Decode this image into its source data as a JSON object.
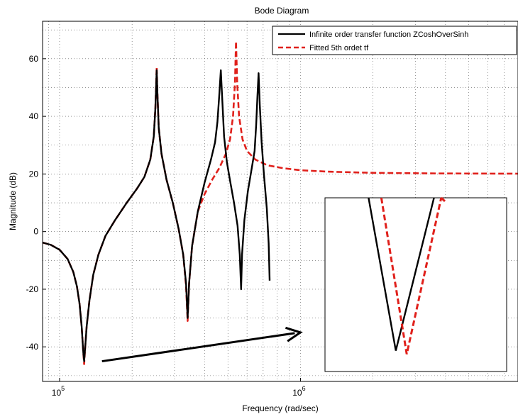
{
  "chart_data": {
    "type": "line",
    "title": "Bode Diagram",
    "xlabel": "Frequency  (rad/sec)",
    "ylabel": "Magnitude (dB)",
    "x_scale": "log",
    "xlim": [
      85000,
      8000000
    ],
    "ylim": [
      -52,
      73
    ],
    "x_ticks": [
      {
        "base": "10",
        "exp": "5",
        "value": 100000
      },
      {
        "base": "10",
        "exp": "6",
        "value": 1000000
      }
    ],
    "y_ticks": [
      -40,
      -20,
      0,
      20,
      40,
      60
    ],
    "grid": true,
    "legend_position": "top-right",
    "series": [
      {
        "name": "Infinite order transfer function ZCoshOverSinh",
        "color": "#000000",
        "style": "solid",
        "points": [
          [
            85000,
            -3.8
          ],
          [
            92000,
            -4.6
          ],
          [
            100000,
            -6.3
          ],
          [
            108000,
            -9.5
          ],
          [
            114000,
            -14
          ],
          [
            118000,
            -19
          ],
          [
            121000,
            -25
          ],
          [
            123500,
            -33
          ],
          [
            125500,
            -42
          ],
          [
            126500,
            -45
          ],
          [
            127500,
            -41
          ],
          [
            129500,
            -33
          ],
          [
            133000,
            -24
          ],
          [
            138000,
            -15
          ],
          [
            145000,
            -8
          ],
          [
            155000,
            -1.5
          ],
          [
            170000,
            4
          ],
          [
            190000,
            10
          ],
          [
            210000,
            15
          ],
          [
            225000,
            19
          ],
          [
            238000,
            25
          ],
          [
            246000,
            33
          ],
          [
            250000,
            43
          ],
          [
            253000,
            56
          ],
          [
            255000,
            47
          ],
          [
            258000,
            36
          ],
          [
            265000,
            27
          ],
          [
            278000,
            18
          ],
          [
            295000,
            10
          ],
          [
            312000,
            1
          ],
          [
            326000,
            -8
          ],
          [
            335000,
            -18
          ],
          [
            340000,
            -30
          ],
          [
            345000,
            -18
          ],
          [
            355000,
            -5
          ],
          [
            375000,
            7
          ],
          [
            400000,
            17
          ],
          [
            425000,
            25
          ],
          [
            442000,
            31
          ],
          [
            452000,
            38
          ],
          [
            460000,
            47
          ],
          [
            467000,
            56
          ],
          [
            474000,
            45
          ],
          [
            482000,
            33
          ],
          [
            495000,
            24
          ],
          [
            512000,
            17
          ],
          [
            530000,
            10
          ],
          [
            548000,
            2
          ],
          [
            560000,
            -8
          ],
          [
            567000,
            -20
          ],
          [
            572000,
            -8
          ],
          [
            585000,
            4
          ],
          [
            605000,
            14
          ],
          [
            625000,
            21
          ],
          [
            645000,
            28
          ],
          [
            655000,
            37
          ],
          [
            663000,
            47
          ],
          [
            670000,
            55
          ],
          [
            678000,
            44
          ],
          [
            690000,
            31
          ],
          [
            705000,
            20
          ],
          [
            725000,
            8
          ],
          [
            738000,
            -4
          ],
          [
            745000,
            -17
          ]
        ]
      },
      {
        "name": "Fitted 5th ordet tf",
        "color": "#e0201b",
        "style": "dashed",
        "points": [
          [
            85000,
            -3.8
          ],
          [
            92000,
            -4.6
          ],
          [
            100000,
            -6.3
          ],
          [
            108000,
            -9.5
          ],
          [
            114000,
            -14
          ],
          [
            118000,
            -19
          ],
          [
            121000,
            -25
          ],
          [
            123500,
            -33
          ],
          [
            125500,
            -42
          ],
          [
            126500,
            -46
          ],
          [
            127500,
            -41
          ],
          [
            129500,
            -33
          ],
          [
            133000,
            -24
          ],
          [
            138000,
            -15
          ],
          [
            145000,
            -8
          ],
          [
            155000,
            -1.5
          ],
          [
            170000,
            4
          ],
          [
            190000,
            10
          ],
          [
            210000,
            15
          ],
          [
            225000,
            19
          ],
          [
            238000,
            25
          ],
          [
            246000,
            33
          ],
          [
            250000,
            43
          ],
          [
            253000,
            57
          ],
          [
            255000,
            47
          ],
          [
            258000,
            36
          ],
          [
            265000,
            27
          ],
          [
            278000,
            18
          ],
          [
            295000,
            10
          ],
          [
            312000,
            1
          ],
          [
            326000,
            -8
          ],
          [
            335000,
            -19
          ],
          [
            340000,
            -31
          ],
          [
            345000,
            -18
          ],
          [
            355000,
            -5
          ],
          [
            375000,
            7
          ],
          [
            400000,
            13
          ],
          [
            430000,
            18
          ],
          [
            460000,
            22
          ],
          [
            490000,
            27
          ],
          [
            510000,
            32
          ],
          [
            525000,
            40
          ],
          [
            535000,
            52
          ],
          [
            540000,
            66
          ],
          [
            546000,
            52
          ],
          [
            556000,
            40
          ],
          [
            575000,
            32
          ],
          [
            600000,
            28
          ],
          [
            650000,
            25
          ],
          [
            730000,
            23
          ],
          [
            850000,
            22
          ],
          [
            1000000,
            21.3
          ],
          [
            1300000,
            20.8
          ],
          [
            2000000,
            20.4
          ],
          [
            3500000,
            20.2
          ],
          [
            8000000,
            20.1
          ]
        ]
      }
    ],
    "annotation": {
      "type": "arrow",
      "from": [
        150000,
        -45
      ],
      "to": [
        1000000,
        -35
      ]
    },
    "inset": {
      "description_hidden": true,
      "black_v": {
        "top": [
          0.24,
          0.0
        ],
        "bottom": [
          0.39,
          0.88
        ],
        "rise": [
          0.6,
          0.0
        ]
      },
      "red_v": {
        "top": [
          0.31,
          0.0
        ],
        "bottom": [
          0.45,
          0.9
        ],
        "rise": [
          0.64,
          0.0
        ]
      }
    }
  }
}
